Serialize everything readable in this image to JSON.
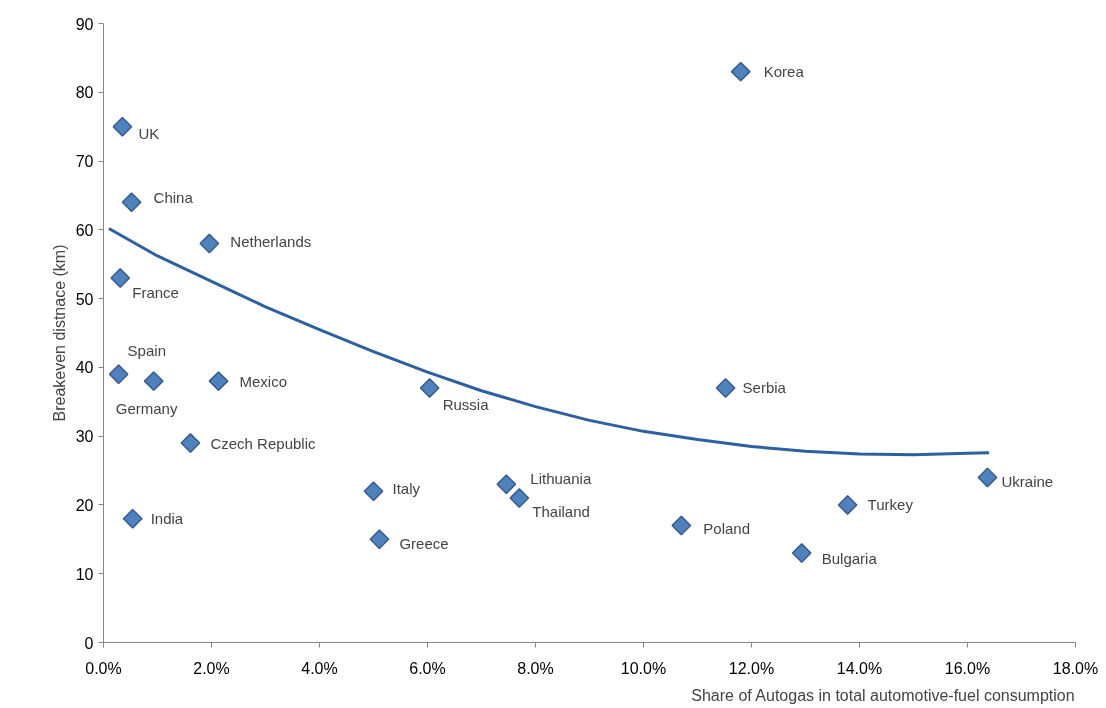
{
  "chart_data": {
    "type": "scatter",
    "xlabel": "Share of Autogas in total automotive-fuel consumption",
    "ylabel": "Breakeven distnace (km)",
    "xlim": [
      0,
      18
    ],
    "ylim": [
      0,
      90
    ],
    "xticks": [
      {
        "value": 0,
        "label": "0.0%"
      },
      {
        "value": 2,
        "label": "2.0%"
      },
      {
        "value": 4,
        "label": "4.0%"
      },
      {
        "value": 6,
        "label": "6.0%"
      },
      {
        "value": 8,
        "label": "8.0%"
      },
      {
        "value": 10,
        "label": "10.0%"
      },
      {
        "value": 12,
        "label": "12.0%"
      },
      {
        "value": 14,
        "label": "14.0%"
      },
      {
        "value": 16,
        "label": "16.0%"
      },
      {
        "value": 18,
        "label": "18.0%"
      }
    ],
    "yticks": [
      0,
      10,
      20,
      30,
      40,
      50,
      60,
      70,
      80,
      90
    ],
    "grid": false,
    "series": [
      {
        "color": "#4f81bd",
        "marker": "diamond",
        "x": [
          0.35,
          0.52,
          1.96,
          0.31,
          0.28,
          0.93,
          2.13,
          1.61,
          0.54,
          5.0,
          5.11,
          6.04,
          7.46,
          7.7,
          10.7,
          11.8,
          11.52,
          12.93,
          13.78,
          16.37
        ],
        "values": [
          75,
          64,
          58,
          53,
          39,
          38,
          38,
          29,
          18,
          22,
          15,
          37,
          23,
          21,
          17,
          83,
          37,
          13,
          20,
          24
        ]
      },
      {
        "type": "line",
        "color": "#2e5f9e",
        "line_style": "solid",
        "marker": "none",
        "x": [
          0.1,
          1,
          2,
          3,
          4,
          5,
          6,
          7,
          8,
          9,
          10,
          11,
          12,
          13,
          14,
          15,
          16,
          16.4
        ],
        "values": [
          60.2,
          56.2,
          52.5,
          48.8,
          45.5,
          42.3,
          39.3,
          36.6,
          34.3,
          32.3,
          30.7,
          29.5,
          28.5,
          27.8,
          27.4,
          27.3,
          27.5,
          27.6
        ]
      }
    ],
    "annotations": [
      {
        "text": "UK",
        "x": 0.35,
        "y": 75
      },
      {
        "text": "China",
        "x": 0.52,
        "y": 64
      },
      {
        "text": "Netherlands",
        "x": 1.96,
        "y": 58
      },
      {
        "text": "France",
        "x": 0.31,
        "y": 53
      },
      {
        "text": "Spain",
        "x": 0.28,
        "y": 39
      },
      {
        "text": "Germany",
        "x": 0.93,
        "y": 38
      },
      {
        "text": "Mexico",
        "x": 2.13,
        "y": 38
      },
      {
        "text": "Czech Republic",
        "x": 1.61,
        "y": 29
      },
      {
        "text": "India",
        "x": 0.54,
        "y": 18
      },
      {
        "text": "Italy",
        "x": 5.0,
        "y": 22
      },
      {
        "text": "Greece",
        "x": 5.11,
        "y": 15
      },
      {
        "text": "Russia",
        "x": 6.04,
        "y": 37
      },
      {
        "text": "Lithuania",
        "x": 7.46,
        "y": 23
      },
      {
        "text": "Thailand",
        "x": 7.7,
        "y": 21
      },
      {
        "text": "Poland",
        "x": 10.7,
        "y": 17
      },
      {
        "text": "Korea",
        "x": 11.8,
        "y": 83
      },
      {
        "text": "Serbia",
        "x": 11.52,
        "y": 37
      },
      {
        "text": "Bulgaria",
        "x": 12.93,
        "y": 13
      },
      {
        "text": "Turkey",
        "x": 13.78,
        "y": 20
      },
      {
        "text": "Ukraine",
        "x": 16.37,
        "y": 24
      }
    ]
  }
}
